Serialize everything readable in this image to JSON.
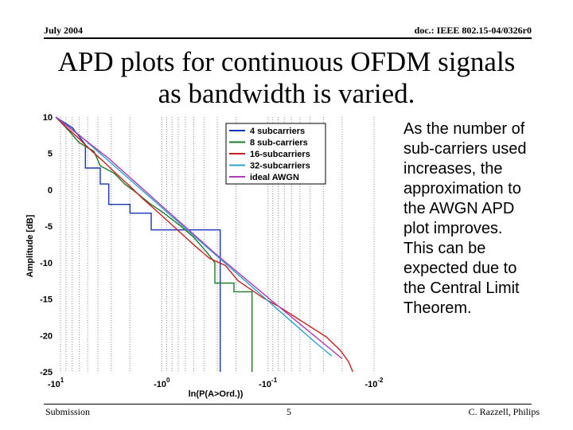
{
  "header": {
    "left": "July 2004",
    "right": "doc.: IEEE 802.15-04/0326r0"
  },
  "title": {
    "line1": "APD plots for continuous OFDM signals",
    "line2": "as bandwidth is varied."
  },
  "side_text": [
    "As the number of",
    "sub-carriers used",
    "increases, the",
    "approximation to",
    "the AWGN APD",
    "plot improves.",
    "This can be",
    "expected due to",
    "the Central Limit",
    "Theorem."
  ],
  "footer": {
    "left": "Submission",
    "center": "5",
    "right": "C. Razzell, Philips"
  },
  "chart_data": {
    "type": "line",
    "xlabel": "ln(P(A>Ord.))",
    "ylabel": "Amplitude [dB]",
    "x_scale": "log-log (plotted as log10(-ln P))",
    "xlim": [
      1,
      -2
    ],
    "ylim": [
      -25,
      10
    ],
    "x_ticks": [
      {
        "base": "-10",
        "exp": "1",
        "value": 1
      },
      {
        "base": "-10",
        "exp": "0",
        "value": 0
      },
      {
        "base": "-10",
        "exp": "-1",
        "value": -1
      },
      {
        "base": "-10",
        "exp": "-2",
        "value": -2
      }
    ],
    "y_ticks": [
      "10",
      "5",
      "0",
      "-5",
      "-10",
      "-15",
      "-20",
      "-25"
    ],
    "grid": "vertical dotted lines at log-decade subdivisions",
    "legend_position": "top-right",
    "series": [
      {
        "name": "4 subcarriers",
        "color": "#1a34b8",
        "points": [
          [
            1.0,
            10.0
          ],
          [
            0.84,
            8.5
          ],
          [
            0.72,
            6.2
          ],
          [
            0.72,
            3.0
          ],
          [
            0.58,
            3.0
          ],
          [
            0.58,
            0.8
          ],
          [
            0.5,
            0.8
          ],
          [
            0.5,
            -2.0
          ],
          [
            0.3,
            -2.0
          ],
          [
            0.3,
            -3.2
          ],
          [
            0.1,
            -3.2
          ],
          [
            0.1,
            -5.5
          ],
          [
            -0.55,
            -5.5
          ],
          [
            -0.55,
            -25.0
          ]
        ]
      },
      {
        "name": "8 sub-carriers",
        "color": "#1c7a2a",
        "points": [
          [
            1.0,
            10.0
          ],
          [
            0.88,
            8.2
          ],
          [
            0.78,
            6.5
          ],
          [
            0.64,
            5.3
          ],
          [
            0.58,
            3.3
          ],
          [
            0.45,
            2.3
          ],
          [
            0.35,
            0.8
          ],
          [
            0.22,
            -0.6
          ],
          [
            0.12,
            -1.8
          ],
          [
            -0.02,
            -3.2
          ],
          [
            -0.18,
            -5.0
          ],
          [
            -0.3,
            -6.5
          ],
          [
            -0.42,
            -8.5
          ],
          [
            -0.5,
            -10.0
          ],
          [
            -0.5,
            -12.8
          ],
          [
            -0.68,
            -12.8
          ],
          [
            -0.68,
            -14.0
          ],
          [
            -0.85,
            -14.0
          ],
          [
            -0.85,
            -16.0
          ],
          [
            -0.85,
            -25.0
          ]
        ]
      },
      {
        "name": "16-subcarriers",
        "color": "#c82020",
        "points": [
          [
            1.0,
            10.0
          ],
          [
            0.9,
            8.6
          ],
          [
            0.8,
            7.3
          ],
          [
            0.68,
            5.6
          ],
          [
            0.55,
            3.9
          ],
          [
            0.42,
            2.1
          ],
          [
            0.3,
            0.5
          ],
          [
            0.18,
            -1.2
          ],
          [
            0.05,
            -2.9
          ],
          [
            -0.08,
            -4.6
          ],
          [
            -0.2,
            -6.2
          ],
          [
            -0.32,
            -7.8
          ],
          [
            -0.45,
            -9.4
          ],
          [
            -0.6,
            -10.4
          ],
          [
            -0.72,
            -12.5
          ],
          [
            -0.85,
            -13.8
          ],
          [
            -0.95,
            -14.8
          ],
          [
            -1.1,
            -16.0
          ],
          [
            -1.25,
            -17.4
          ],
          [
            -1.4,
            -18.8
          ],
          [
            -1.55,
            -20.2
          ],
          [
            -1.68,
            -22.0
          ],
          [
            -1.76,
            -23.6
          ],
          [
            -1.8,
            -25.0
          ]
        ]
      },
      {
        "name": "32-subcarriers",
        "color": "#2aa6cc",
        "points": [
          [
            1.0,
            10.0
          ],
          [
            0.8,
            7.8
          ],
          [
            0.55,
            4.6
          ],
          [
            0.3,
            1.4
          ],
          [
            0.05,
            -1.8
          ],
          [
            -0.2,
            -5.0
          ],
          [
            -0.45,
            -8.2
          ],
          [
            -0.7,
            -11.4
          ],
          [
            -0.95,
            -14.6
          ],
          [
            -1.2,
            -17.8
          ],
          [
            -1.45,
            -21.0
          ],
          [
            -1.6,
            -22.8
          ]
        ]
      },
      {
        "name": "ideal AWGN",
        "color": "#b03cb8",
        "points": [
          [
            1.0,
            10.0
          ],
          [
            0.5,
            4.3
          ],
          [
            0.0,
            -2.2
          ],
          [
            -0.5,
            -8.7
          ],
          [
            -1.0,
            -14.8
          ],
          [
            -1.5,
            -20.8
          ],
          [
            -1.7,
            -23.2
          ]
        ]
      }
    ]
  }
}
